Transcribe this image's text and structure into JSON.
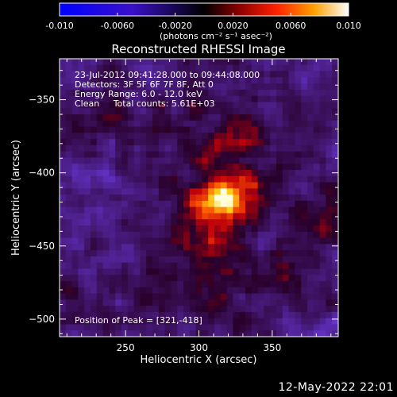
{
  "chart_data": {
    "type": "heatmap",
    "title": "Reconstructed RHESSI Image",
    "xlabel": "Heliocentric X (arcsec)",
    "ylabel": "Heliocentric Y (arcsec)",
    "xlim": [
      205,
      395
    ],
    "ylim": [
      -512,
      -322
    ],
    "x_ticks": [
      250,
      300,
      350
    ],
    "y_ticks": [
      -350,
      -400,
      -450,
      -500
    ],
    "colorbar": {
      "range": [
        -0.01,
        0.01
      ],
      "ticks": [
        "-0.010",
        "-0.0060",
        "-0.0020",
        "0.0020",
        "0.0060",
        "0.010"
      ],
      "tick_values": [
        -0.01,
        -0.006,
        -0.002,
        0.002,
        0.006,
        0.01
      ],
      "label": "(photons cm⁻² s⁻¹ asec⁻²)"
    },
    "annotations": [
      "23-Jul-2012 09:41:28.000 to 09:44:08.000",
      "Detectors: 3F 5F 6F 7F 8F, Att 0",
      "Energy Range: 6.0 - 12.0 keV",
      "Clean     Total counts: 5.61E+03"
    ],
    "peak": {
      "label": "Position of Peak = [321,-418]",
      "x": 321,
      "y": -418
    },
    "footer": "12-May-2022 22:01"
  }
}
